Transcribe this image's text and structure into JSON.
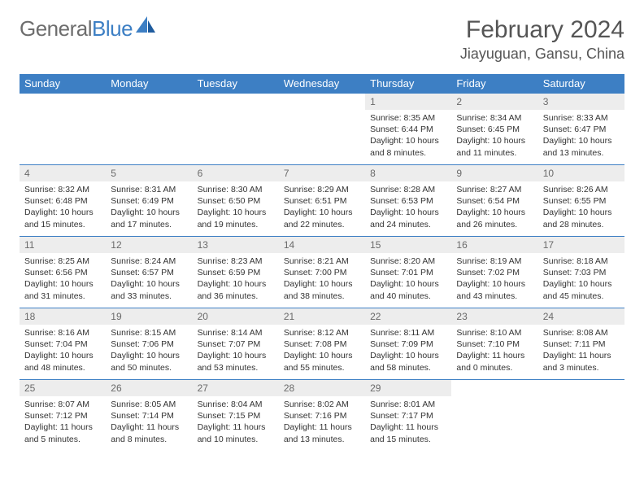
{
  "brand": {
    "general": "General",
    "blue": "Blue"
  },
  "title": "February 2024",
  "location": "Jiayuguan, Gansu, China",
  "colors": {
    "header_bg": "#3d7fc4",
    "header_text": "#ffffff",
    "date_bg": "#ededed",
    "date_text": "#6a6a6a",
    "border": "#3d7fc4",
    "body_text": "#333333"
  },
  "day_names": [
    "Sunday",
    "Monday",
    "Tuesday",
    "Wednesday",
    "Thursday",
    "Friday",
    "Saturday"
  ],
  "weeks": [
    [
      null,
      null,
      null,
      null,
      {
        "d": "1",
        "sr": "Sunrise: 8:35 AM",
        "ss": "Sunset: 6:44 PM",
        "dl1": "Daylight: 10 hours",
        "dl2": "and 8 minutes."
      },
      {
        "d": "2",
        "sr": "Sunrise: 8:34 AM",
        "ss": "Sunset: 6:45 PM",
        "dl1": "Daylight: 10 hours",
        "dl2": "and 11 minutes."
      },
      {
        "d": "3",
        "sr": "Sunrise: 8:33 AM",
        "ss": "Sunset: 6:47 PM",
        "dl1": "Daylight: 10 hours",
        "dl2": "and 13 minutes."
      }
    ],
    [
      {
        "d": "4",
        "sr": "Sunrise: 8:32 AM",
        "ss": "Sunset: 6:48 PM",
        "dl1": "Daylight: 10 hours",
        "dl2": "and 15 minutes."
      },
      {
        "d": "5",
        "sr": "Sunrise: 8:31 AM",
        "ss": "Sunset: 6:49 PM",
        "dl1": "Daylight: 10 hours",
        "dl2": "and 17 minutes."
      },
      {
        "d": "6",
        "sr": "Sunrise: 8:30 AM",
        "ss": "Sunset: 6:50 PM",
        "dl1": "Daylight: 10 hours",
        "dl2": "and 19 minutes."
      },
      {
        "d": "7",
        "sr": "Sunrise: 8:29 AM",
        "ss": "Sunset: 6:51 PM",
        "dl1": "Daylight: 10 hours",
        "dl2": "and 22 minutes."
      },
      {
        "d": "8",
        "sr": "Sunrise: 8:28 AM",
        "ss": "Sunset: 6:53 PM",
        "dl1": "Daylight: 10 hours",
        "dl2": "and 24 minutes."
      },
      {
        "d": "9",
        "sr": "Sunrise: 8:27 AM",
        "ss": "Sunset: 6:54 PM",
        "dl1": "Daylight: 10 hours",
        "dl2": "and 26 minutes."
      },
      {
        "d": "10",
        "sr": "Sunrise: 8:26 AM",
        "ss": "Sunset: 6:55 PM",
        "dl1": "Daylight: 10 hours",
        "dl2": "and 28 minutes."
      }
    ],
    [
      {
        "d": "11",
        "sr": "Sunrise: 8:25 AM",
        "ss": "Sunset: 6:56 PM",
        "dl1": "Daylight: 10 hours",
        "dl2": "and 31 minutes."
      },
      {
        "d": "12",
        "sr": "Sunrise: 8:24 AM",
        "ss": "Sunset: 6:57 PM",
        "dl1": "Daylight: 10 hours",
        "dl2": "and 33 minutes."
      },
      {
        "d": "13",
        "sr": "Sunrise: 8:23 AM",
        "ss": "Sunset: 6:59 PM",
        "dl1": "Daylight: 10 hours",
        "dl2": "and 36 minutes."
      },
      {
        "d": "14",
        "sr": "Sunrise: 8:21 AM",
        "ss": "Sunset: 7:00 PM",
        "dl1": "Daylight: 10 hours",
        "dl2": "and 38 minutes."
      },
      {
        "d": "15",
        "sr": "Sunrise: 8:20 AM",
        "ss": "Sunset: 7:01 PM",
        "dl1": "Daylight: 10 hours",
        "dl2": "and 40 minutes."
      },
      {
        "d": "16",
        "sr": "Sunrise: 8:19 AM",
        "ss": "Sunset: 7:02 PM",
        "dl1": "Daylight: 10 hours",
        "dl2": "and 43 minutes."
      },
      {
        "d": "17",
        "sr": "Sunrise: 8:18 AM",
        "ss": "Sunset: 7:03 PM",
        "dl1": "Daylight: 10 hours",
        "dl2": "and 45 minutes."
      }
    ],
    [
      {
        "d": "18",
        "sr": "Sunrise: 8:16 AM",
        "ss": "Sunset: 7:04 PM",
        "dl1": "Daylight: 10 hours",
        "dl2": "and 48 minutes."
      },
      {
        "d": "19",
        "sr": "Sunrise: 8:15 AM",
        "ss": "Sunset: 7:06 PM",
        "dl1": "Daylight: 10 hours",
        "dl2": "and 50 minutes."
      },
      {
        "d": "20",
        "sr": "Sunrise: 8:14 AM",
        "ss": "Sunset: 7:07 PM",
        "dl1": "Daylight: 10 hours",
        "dl2": "and 53 minutes."
      },
      {
        "d": "21",
        "sr": "Sunrise: 8:12 AM",
        "ss": "Sunset: 7:08 PM",
        "dl1": "Daylight: 10 hours",
        "dl2": "and 55 minutes."
      },
      {
        "d": "22",
        "sr": "Sunrise: 8:11 AM",
        "ss": "Sunset: 7:09 PM",
        "dl1": "Daylight: 10 hours",
        "dl2": "and 58 minutes."
      },
      {
        "d": "23",
        "sr": "Sunrise: 8:10 AM",
        "ss": "Sunset: 7:10 PM",
        "dl1": "Daylight: 11 hours",
        "dl2": "and 0 minutes."
      },
      {
        "d": "24",
        "sr": "Sunrise: 8:08 AM",
        "ss": "Sunset: 7:11 PM",
        "dl1": "Daylight: 11 hours",
        "dl2": "and 3 minutes."
      }
    ],
    [
      {
        "d": "25",
        "sr": "Sunrise: 8:07 AM",
        "ss": "Sunset: 7:12 PM",
        "dl1": "Daylight: 11 hours",
        "dl2": "and 5 minutes."
      },
      {
        "d": "26",
        "sr": "Sunrise: 8:05 AM",
        "ss": "Sunset: 7:14 PM",
        "dl1": "Daylight: 11 hours",
        "dl2": "and 8 minutes."
      },
      {
        "d": "27",
        "sr": "Sunrise: 8:04 AM",
        "ss": "Sunset: 7:15 PM",
        "dl1": "Daylight: 11 hours",
        "dl2": "and 10 minutes."
      },
      {
        "d": "28",
        "sr": "Sunrise: 8:02 AM",
        "ss": "Sunset: 7:16 PM",
        "dl1": "Daylight: 11 hours",
        "dl2": "and 13 minutes."
      },
      {
        "d": "29",
        "sr": "Sunrise: 8:01 AM",
        "ss": "Sunset: 7:17 PM",
        "dl1": "Daylight: 11 hours",
        "dl2": "and 15 minutes."
      },
      null,
      null
    ]
  ]
}
